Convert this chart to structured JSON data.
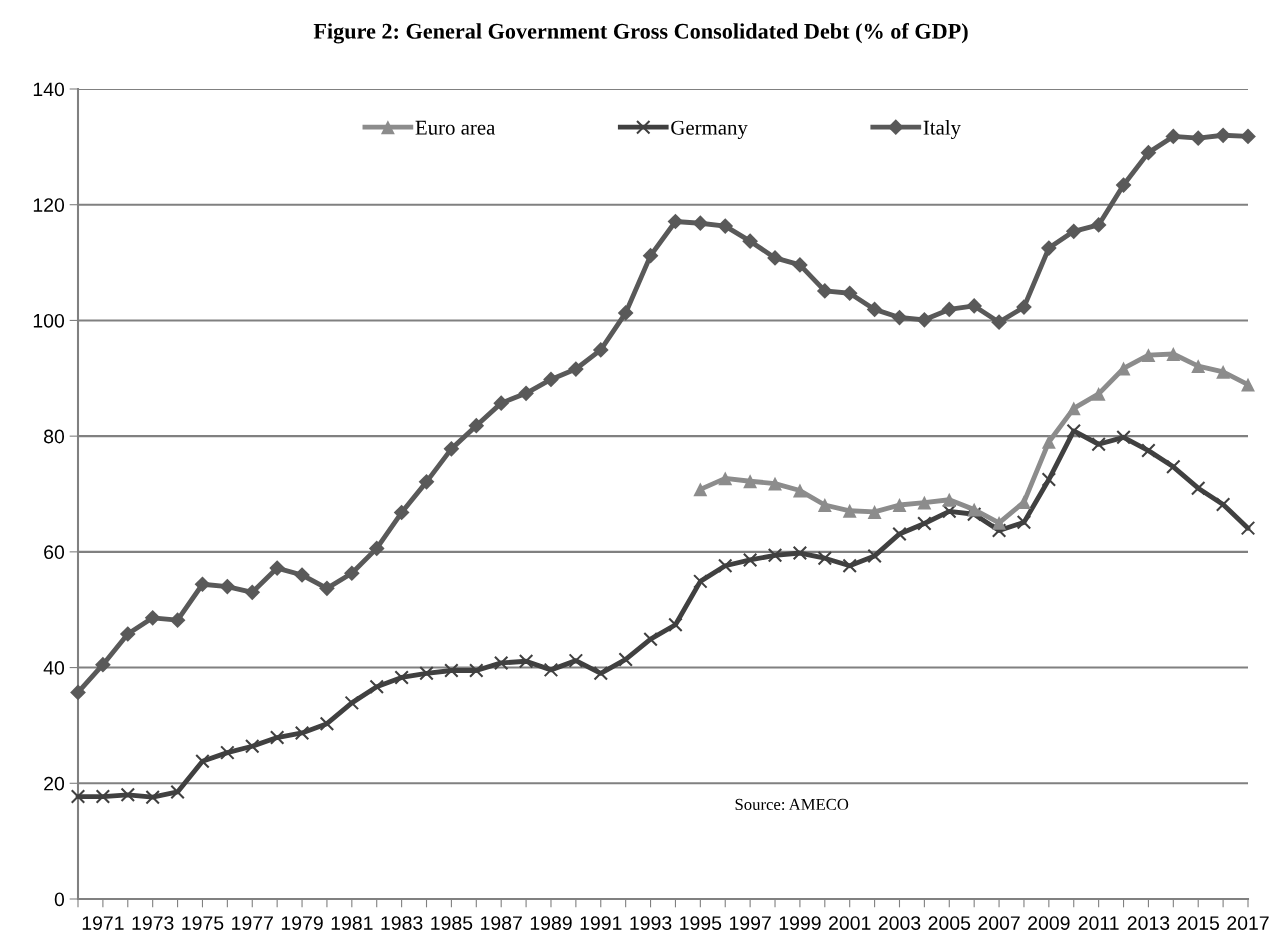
{
  "chart_data": {
    "type": "line",
    "title": "Figure 2: General Government Gross Consolidated Debt (% of GDP)",
    "categories": [
      null,
      "1971",
      null,
      "1973",
      null,
      "1975",
      null,
      "1977",
      null,
      "1979",
      null,
      "1981",
      null,
      "1983",
      null,
      "1985",
      null,
      "1987",
      null,
      "1989",
      null,
      "1991",
      null,
      "1993",
      null,
      "1995",
      null,
      "1997",
      null,
      "1999",
      null,
      "2001",
      null,
      "2003",
      null,
      "2005",
      null,
      "2007",
      null,
      "2009",
      null,
      "2011",
      null,
      "2013",
      null,
      "2015",
      null,
      "2017"
    ],
    "series": [
      {
        "name": "Euro area",
        "color": "#8c8c8c",
        "marker": "triangle",
        "values": [
          null,
          null,
          null,
          null,
          null,
          null,
          null,
          null,
          null,
          null,
          null,
          null,
          null,
          null,
          null,
          null,
          null,
          null,
          null,
          null,
          null,
          null,
          null,
          null,
          null,
          70.8,
          72.7,
          72.2,
          71.8,
          70.6,
          68.1,
          67.1,
          66.9,
          68.1,
          68.5,
          69.0,
          67.3,
          65.0,
          68.6,
          79.0,
          84.8,
          87.3,
          91.7,
          94.0,
          94.2,
          92.1,
          91.1,
          88.9
        ]
      },
      {
        "name": "Germany",
        "color": "#404040",
        "marker": "cross",
        "values": [
          17.7,
          17.7,
          18.0,
          17.6,
          18.5,
          23.8,
          25.3,
          26.4,
          27.9,
          28.7,
          30.3,
          33.9,
          36.7,
          38.3,
          39.0,
          39.5,
          39.5,
          40.8,
          41.1,
          39.6,
          41.2,
          39.0,
          41.4,
          44.9,
          47.4,
          54.9,
          57.6,
          58.6,
          59.4,
          59.8,
          58.9,
          57.6,
          59.3,
          63.1,
          64.9,
          67.0,
          66.5,
          63.7,
          65.1,
          72.5,
          80.9,
          78.6,
          79.8,
          77.5,
          74.7,
          71.0,
          68.2,
          64.1
        ]
      },
      {
        "name": "Italy",
        "color": "#595959",
        "marker": "diamond",
        "values": [
          35.7,
          40.5,
          45.8,
          48.6,
          48.2,
          54.4,
          54.0,
          53.0,
          57.2,
          56.0,
          53.7,
          56.3,
          60.6,
          66.8,
          72.1,
          77.8,
          81.8,
          85.7,
          87.4,
          89.8,
          91.6,
          94.9,
          101.3,
          111.2,
          117.1,
          116.8,
          116.3,
          113.7,
          110.8,
          109.6,
          105.1,
          104.7,
          101.9,
          100.5,
          100.1,
          101.9,
          102.5,
          99.7,
          102.3,
          112.5,
          115.4,
          116.5,
          123.4,
          129.0,
          131.8,
          131.5,
          132.0,
          131.8
        ]
      }
    ],
    "ylim": [
      0,
      140
    ],
    "yticks": [
      0,
      20,
      40,
      60,
      80,
      100,
      120,
      140
    ],
    "grid": "y",
    "legend": "top",
    "line_style": "solid",
    "annotations": [
      "Source: AMECO"
    ]
  }
}
